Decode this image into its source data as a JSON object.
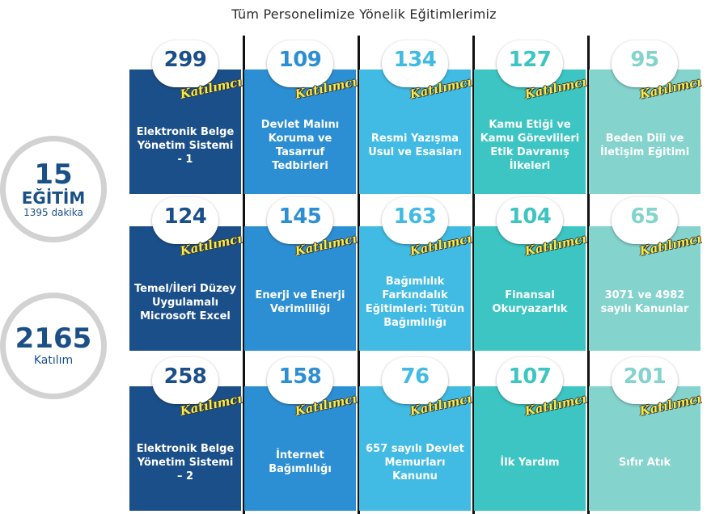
{
  "title": "Tüm Personelimize Yönelik Eğitimlerimiz",
  "tag_text": "Katılımcı",
  "summary": {
    "count": "15",
    "count_label": "EĞİTİM",
    "duration": "1395 dakika",
    "participants": "2165",
    "participants_label": "Katılım"
  },
  "columns": [
    {
      "color": "#1b4f8a",
      "num_color": "#1b4f8a"
    },
    {
      "color": "#2d8fd3",
      "num_color": "#2d8fd3"
    },
    {
      "color": "#41bbe3",
      "num_color": "#41bbe3"
    },
    {
      "color": "#3cc5c2",
      "num_color": "#3cc5c2"
    },
    {
      "color": "#84d3cd",
      "num_color": "#84d3cd"
    }
  ],
  "rows": [
    [
      {
        "count": "299",
        "label": "Elektronik Belge Yönetim Sistemi - 1"
      },
      {
        "count": "109",
        "label": "Devlet Malını Koruma ve Tasarruf Tedbirleri"
      },
      {
        "count": "134",
        "label": "Resmi Yazışma Usul ve Esasları"
      },
      {
        "count": "127",
        "label": "Kamu Etiği ve Kamu Görevlileri Etik Davranış İlkeleri"
      },
      {
        "count": "95",
        "label": "Beden Dili ve İletişim Eğitimi"
      }
    ],
    [
      {
        "count": "124",
        "label": "Temel/İleri Düzey Uygulamalı Microsoft Excel"
      },
      {
        "count": "145",
        "label": "Enerji ve Enerji Verimliliği"
      },
      {
        "count": "163",
        "label": "Bağımlılık Farkındalık Eğitimleri: Tütün Bağımlılığı"
      },
      {
        "count": "104",
        "label": "Finansal Okuryazarlık"
      },
      {
        "count": "65",
        "label": "3071 ve 4982 sayılı Kanunlar"
      }
    ],
    [
      {
        "count": "258",
        "label": "Elektronik Belge Yönetim Sistemi – 2"
      },
      {
        "count": "158",
        "label": "İnternet Bağımlılığı"
      },
      {
        "count": "76",
        "label": "657 sayılı Devlet Memurları Kanunu"
      },
      {
        "count": "107",
        "label": "İlk Yardım"
      },
      {
        "count": "201",
        "label": "Sıfır Atık"
      }
    ]
  ]
}
